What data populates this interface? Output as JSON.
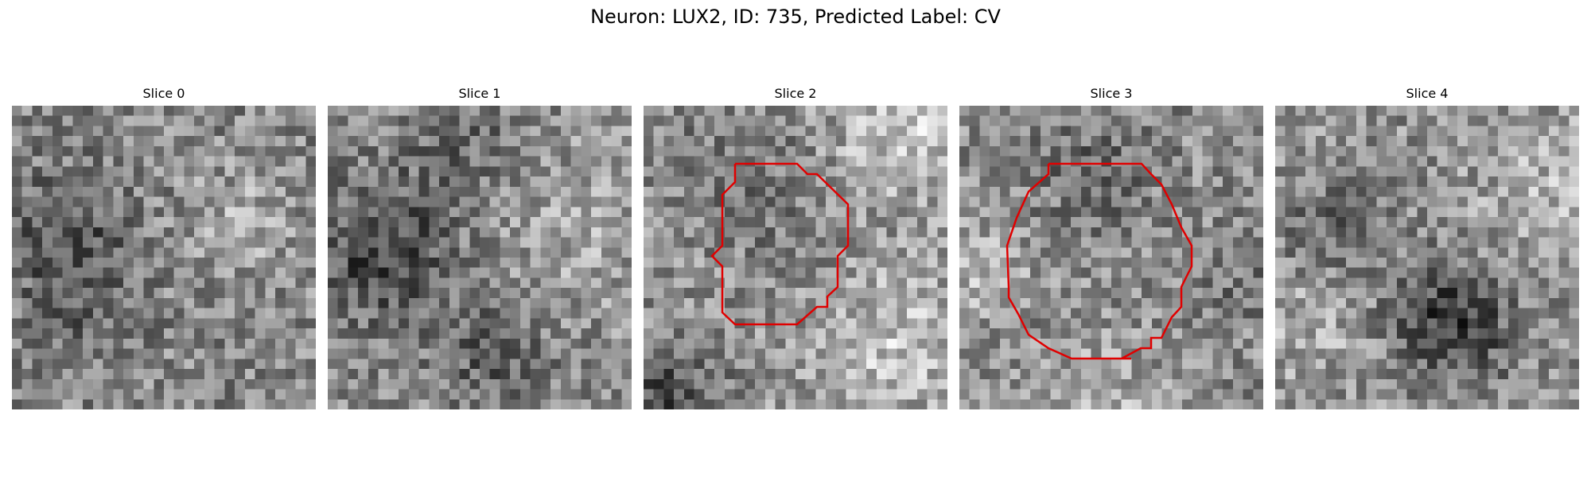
{
  "figure": {
    "title": "Neuron: LUX2, ID: 735, Predicted Label: CV"
  },
  "panels": [
    {
      "title": "Slice 0",
      "contour": false,
      "tone": "mid-gray with dark cluster on left"
    },
    {
      "title": "Slice 1",
      "contour": false,
      "tone": "dark band on left side"
    },
    {
      "title": "Slice 2",
      "contour": true,
      "tone": "dark corner lower-left, bright upper-right"
    },
    {
      "title": "Slice 3",
      "contour": true,
      "tone": "mid-gray speckle"
    },
    {
      "title": "Slice 4",
      "contour": false,
      "tone": "dark cluster lower-right"
    }
  ],
  "colors": {
    "contour": "#e00000",
    "colormap": "gray"
  }
}
